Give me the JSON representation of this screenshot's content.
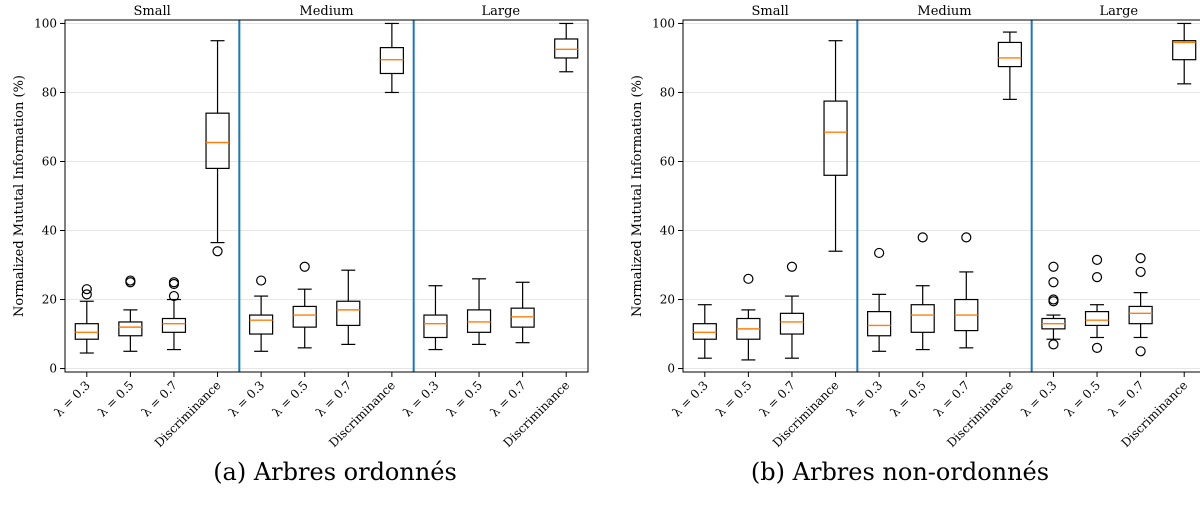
{
  "chart_data": [
    {
      "type": "box",
      "caption": "(a) Arbres ordonnés",
      "ylabel": "Normalized Mututal Information (%)",
      "ylim": [
        -1,
        101
      ],
      "yticks": [
        0,
        20,
        40,
        60,
        80,
        100
      ],
      "grid": "horizontal",
      "categories": [
        "λ = 0.3",
        "λ = 0.5",
        "λ = 0.7",
        "Discriminance",
        "λ = 0.3",
        "λ = 0.5",
        "λ = 0.7",
        "Discriminance",
        "λ = 0.3",
        "λ = 0.5",
        "λ = 0.7",
        "Discriminance"
      ],
      "groups": [
        {
          "label": "Small",
          "boxes": [
            {
              "whislo": 4.5,
              "q1": 8.5,
              "med": 10.5,
              "q3": 13.0,
              "whishi": 19.5,
              "fliers": [
                21.5,
                23.0
              ]
            },
            {
              "whislo": 5.0,
              "q1": 9.5,
              "med": 12.0,
              "q3": 13.5,
              "whishi": 17.0,
              "fliers": [
                25.0,
                25.5
              ]
            },
            {
              "whislo": 5.5,
              "q1": 10.5,
              "med": 13.0,
              "q3": 14.5,
              "whishi": 20.0,
              "fliers": [
                21.0,
                24.5,
                25.0
              ]
            },
            {
              "whislo": 36.5,
              "q1": 58.0,
              "med": 65.5,
              "q3": 74.0,
              "whishi": 95.0,
              "fliers": [
                34.0
              ]
            }
          ]
        },
        {
          "label": "Medium",
          "boxes": [
            {
              "whislo": 5.0,
              "q1": 10.0,
              "med": 14.0,
              "q3": 15.5,
              "whishi": 21.0,
              "fliers": [
                25.5
              ]
            },
            {
              "whislo": 6.0,
              "q1": 12.0,
              "med": 15.5,
              "q3": 18.0,
              "whishi": 23.0,
              "fliers": [
                29.5
              ]
            },
            {
              "whislo": 7.0,
              "q1": 12.5,
              "med": 17.0,
              "q3": 19.5,
              "whishi": 28.5,
              "fliers": []
            },
            {
              "whislo": 80.0,
              "q1": 85.5,
              "med": 89.5,
              "q3": 93.0,
              "whishi": 100.0,
              "fliers": []
            }
          ]
        },
        {
          "label": "Large",
          "boxes": [
            {
              "whislo": 5.5,
              "q1": 9.0,
              "med": 13.0,
              "q3": 15.5,
              "whishi": 24.0,
              "fliers": []
            },
            {
              "whislo": 7.0,
              "q1": 10.5,
              "med": 13.5,
              "q3": 17.0,
              "whishi": 26.0,
              "fliers": []
            },
            {
              "whislo": 7.5,
              "q1": 12.0,
              "med": 15.0,
              "q3": 17.5,
              "whishi": 25.0,
              "fliers": []
            },
            {
              "whislo": 86.0,
              "q1": 90.0,
              "med": 92.5,
              "q3": 95.5,
              "whishi": 100.0,
              "fliers": []
            }
          ]
        }
      ]
    },
    {
      "type": "box",
      "caption": "(b) Arbres non-ordonnés",
      "ylabel": "Normalized Mututal Information (%)",
      "ylim": [
        -1,
        101
      ],
      "yticks": [
        0,
        20,
        40,
        60,
        80,
        100
      ],
      "grid": "horizontal",
      "categories": [
        "λ = 0.3",
        "λ = 0.5",
        "λ = 0.7",
        "Discriminance",
        "λ = 0.3",
        "λ = 0.5",
        "λ = 0.7",
        "Discriminance",
        "λ = 0.3",
        "λ = 0.5",
        "λ = 0.7",
        "Discriminance"
      ],
      "groups": [
        {
          "label": "Small",
          "boxes": [
            {
              "whislo": 3.0,
              "q1": 8.5,
              "med": 10.5,
              "q3": 13.0,
              "whishi": 18.5,
              "fliers": []
            },
            {
              "whislo": 2.5,
              "q1": 8.5,
              "med": 11.5,
              "q3": 14.5,
              "whishi": 17.0,
              "fliers": [
                26.0
              ]
            },
            {
              "whislo": 3.0,
              "q1": 10.0,
              "med": 13.5,
              "q3": 16.0,
              "whishi": 21.0,
              "fliers": [
                29.5
              ]
            },
            {
              "whislo": 34.0,
              "q1": 56.0,
              "med": 68.5,
              "q3": 77.5,
              "whishi": 95.0,
              "fliers": []
            }
          ]
        },
        {
          "label": "Medium",
          "boxes": [
            {
              "whislo": 5.0,
              "q1": 9.5,
              "med": 12.5,
              "q3": 16.5,
              "whishi": 21.5,
              "fliers": [
                33.5
              ]
            },
            {
              "whislo": 5.5,
              "q1": 10.5,
              "med": 15.5,
              "q3": 18.5,
              "whishi": 24.0,
              "fliers": [
                38.0
              ]
            },
            {
              "whislo": 6.0,
              "q1": 11.0,
              "med": 15.5,
              "q3": 20.0,
              "whishi": 28.0,
              "fliers": [
                38.0
              ]
            },
            {
              "whislo": 78.0,
              "q1": 87.5,
              "med": 90.0,
              "q3": 94.5,
              "whishi": 97.5,
              "fliers": []
            }
          ]
        },
        {
          "label": "Large",
          "boxes": [
            {
              "whislo": 8.5,
              "q1": 11.5,
              "med": 13.0,
              "q3": 14.5,
              "whishi": 15.5,
              "fliers": [
                7.0,
                19.5,
                20.0,
                25.0,
                29.5
              ]
            },
            {
              "whislo": 9.0,
              "q1": 12.5,
              "med": 14.0,
              "q3": 16.5,
              "whishi": 18.5,
              "fliers": [
                6.0,
                26.5,
                31.5
              ]
            },
            {
              "whislo": 9.0,
              "q1": 13.0,
              "med": 16.0,
              "q3": 18.0,
              "whishi": 22.0,
              "fliers": [
                5.0,
                28.0,
                32.0
              ]
            },
            {
              "whislo": 82.5,
              "q1": 89.5,
              "med": 94.5,
              "q3": 95.0,
              "whishi": 100.0,
              "fliers": []
            }
          ]
        }
      ]
    }
  ]
}
